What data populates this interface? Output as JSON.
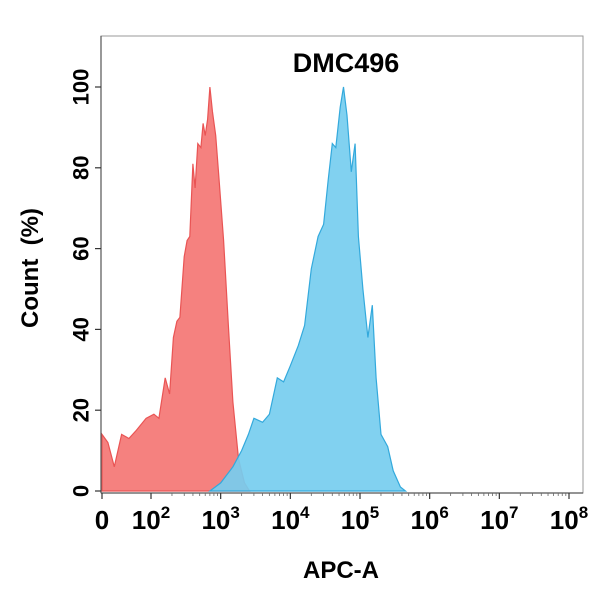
{
  "chart_data": {
    "type": "area",
    "title": "DMC496",
    "xlabel": "APC-A",
    "ylabel": "Count  (%)",
    "xscale": "log (biexponential near 0)",
    "xlim": [
      0,
      100000000
    ],
    "ylim": [
      0,
      105
    ],
    "grid": false,
    "legend": "none",
    "x_ticks": [
      {
        "base": "0",
        "exp": ""
      },
      {
        "base": "10",
        "exp": "2"
      },
      {
        "base": "10",
        "exp": "3"
      },
      {
        "base": "10",
        "exp": "4"
      },
      {
        "base": "10",
        "exp": "5"
      },
      {
        "base": "10",
        "exp": "6"
      },
      {
        "base": "10",
        "exp": "7"
      },
      {
        "base": "10",
        "exp": "8"
      }
    ],
    "y_ticks": [
      "0",
      "20",
      "40",
      "60",
      "80",
      "100"
    ],
    "series": [
      {
        "color": "#f47a78",
        "stroke": "#e95454",
        "points": [
          [
            0,
            14
          ],
          [
            12,
            12
          ],
          [
            25,
            6
          ],
          [
            40,
            14
          ],
          [
            55,
            13
          ],
          [
            70,
            15
          ],
          [
            90,
            18
          ],
          [
            110,
            19
          ],
          [
            130,
            18
          ],
          [
            160,
            28
          ],
          [
            185,
            24
          ],
          [
            210,
            38
          ],
          [
            235,
            42
          ],
          [
            260,
            43
          ],
          [
            300,
            58
          ],
          [
            330,
            62
          ],
          [
            360,
            63
          ],
          [
            400,
            81
          ],
          [
            430,
            75
          ],
          [
            470,
            86
          ],
          [
            520,
            85
          ],
          [
            560,
            91
          ],
          [
            600,
            88
          ],
          [
            650,
            92
          ],
          [
            700,
            100
          ],
          [
            760,
            94
          ],
          [
            850,
            88
          ],
          [
            950,
            77
          ],
          [
            1100,
            62
          ],
          [
            1300,
            40
          ],
          [
            1500,
            22
          ],
          [
            1800,
            8
          ],
          [
            2200,
            2
          ],
          [
            2600,
            0
          ]
        ]
      },
      {
        "color": "#76cdef",
        "stroke": "#33a9dc",
        "points": [
          [
            700,
            0
          ],
          [
            1000,
            2
          ],
          [
            1500,
            6
          ],
          [
            2000,
            10
          ],
          [
            2500,
            14
          ],
          [
            3000,
            18
          ],
          [
            4000,
            17
          ],
          [
            5000,
            19
          ],
          [
            6500,
            28
          ],
          [
            8000,
            27
          ],
          [
            10000,
            31
          ],
          [
            13000,
            36
          ],
          [
            16000,
            41
          ],
          [
            20000,
            55
          ],
          [
            25000,
            63
          ],
          [
            30000,
            66
          ],
          [
            35000,
            77
          ],
          [
            40000,
            86
          ],
          [
            45000,
            85
          ],
          [
            52000,
            95
          ],
          [
            58000,
            100
          ],
          [
            65000,
            93
          ],
          [
            75000,
            79
          ],
          [
            85000,
            86
          ],
          [
            95000,
            63
          ],
          [
            110000,
            50
          ],
          [
            130000,
            38
          ],
          [
            150000,
            46
          ],
          [
            170000,
            28
          ],
          [
            200000,
            14
          ],
          [
            250000,
            11
          ],
          [
            300000,
            5
          ],
          [
            380000,
            1
          ],
          [
            450000,
            0
          ]
        ]
      }
    ]
  }
}
